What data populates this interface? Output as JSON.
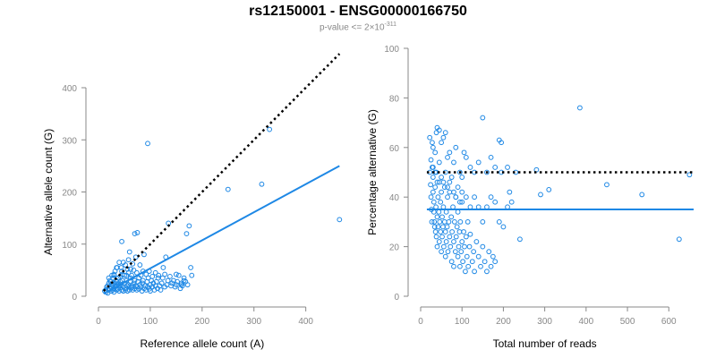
{
  "title": "rs12150001 - ENSG00000166750",
  "subtitle": {
    "prefix": "p-value <= 2×10",
    "exponent": "-311"
  },
  "colors": {
    "points": "#1E88E5",
    "fit_line": "#1E88E5",
    "reference_line": "#000000",
    "axis": "#888888"
  },
  "chart_data": [
    {
      "type": "scatter",
      "xlabel": "Reference allele count (A)",
      "ylabel": "Alternative allele count (G)",
      "xlim": [
        0,
        480
      ],
      "ylim": [
        0,
        400
      ],
      "xticks": [
        0,
        100,
        200,
        300,
        400
      ],
      "yticks": [
        0,
        100,
        200,
        300,
        400
      ],
      "grid": false,
      "reference_line": {
        "style": "dotted",
        "color": "#000000",
        "from": [
          10,
          10
        ],
        "to": [
          465,
          465
        ]
      },
      "fit_line": {
        "style": "solid",
        "color": "#1E88E5",
        "from": [
          10,
          5
        ],
        "to": [
          465,
          250
        ]
      },
      "points": [
        [
          12,
          10
        ],
        [
          14,
          12
        ],
        [
          15,
          8
        ],
        [
          16,
          18
        ],
        [
          18,
          20
        ],
        [
          18,
          6
        ],
        [
          20,
          25
        ],
        [
          20,
          12
        ],
        [
          22,
          14
        ],
        [
          22,
          30
        ],
        [
          24,
          28
        ],
        [
          25,
          10
        ],
        [
          25,
          18
        ],
        [
          26,
          22
        ],
        [
          28,
          35
        ],
        [
          28,
          12
        ],
        [
          30,
          15
        ],
        [
          30,
          40
        ],
        [
          30,
          8
        ],
        [
          32,
          25
        ],
        [
          32,
          18
        ],
        [
          34,
          30
        ],
        [
          35,
          12
        ],
        [
          35,
          20
        ],
        [
          36,
          28
        ],
        [
          38,
          14
        ],
        [
          38,
          35
        ],
        [
          40,
          20
        ],
        [
          40,
          10
        ],
        [
          42,
          28
        ],
        [
          42,
          16
        ],
        [
          44,
          22
        ],
        [
          45,
          12
        ],
        [
          46,
          30
        ],
        [
          48,
          18
        ],
        [
          48,
          10
        ],
        [
          50,
          25
        ],
        [
          50,
          40
        ],
        [
          52,
          15
        ],
        [
          52,
          12
        ],
        [
          54,
          30
        ],
        [
          55,
          20
        ],
        [
          56,
          10
        ],
        [
          58,
          22
        ],
        [
          58,
          45
        ],
        [
          60,
          18
        ],
        [
          60,
          12
        ],
        [
          62,
          28
        ],
        [
          62,
          35
        ],
        [
          64,
          16
        ],
        [
          65,
          20
        ],
        [
          66,
          12
        ],
        [
          68,
          25
        ],
        [
          70,
          30
        ],
        [
          70,
          15
        ],
        [
          72,
          20
        ],
        [
          72,
          75
        ],
        [
          74,
          12
        ],
        [
          75,
          18
        ],
        [
          76,
          28
        ],
        [
          78,
          35
        ],
        [
          78,
          14
        ],
        [
          80,
          22
        ],
        [
          80,
          60
        ],
        [
          82,
          18
        ],
        [
          84,
          10
        ],
        [
          85,
          25
        ],
        [
          86,
          30
        ],
        [
          88,
          15
        ],
        [
          88,
          80
        ],
        [
          90,
          20
        ],
        [
          92,
          12
        ],
        [
          94,
          28
        ],
        [
          95,
          18
        ],
        [
          96,
          35
        ],
        [
          98,
          14
        ],
        [
          100,
          22
        ],
        [
          100,
          10
        ],
        [
          102,
          30
        ],
        [
          104,
          18
        ],
        [
          106,
          25
        ],
        [
          108,
          12
        ],
        [
          110,
          20
        ],
        [
          112,
          28
        ],
        [
          114,
          15
        ],
        [
          115,
          35
        ],
        [
          118,
          20
        ],
        [
          120,
          12
        ],
        [
          122,
          25
        ],
        [
          125,
          55
        ],
        [
          128,
          18
        ],
        [
          130,
          75
        ],
        [
          132,
          22
        ],
        [
          135,
          140
        ],
        [
          140,
          20
        ],
        [
          145,
          30
        ],
        [
          150,
          22
        ],
        [
          155,
          40
        ],
        [
          160,
          25
        ],
        [
          165,
          35
        ],
        [
          170,
          120
        ],
        [
          175,
          135
        ],
        [
          178,
          55
        ],
        [
          45,
          105
        ],
        [
          60,
          85
        ],
        [
          70,
          120
        ],
        [
          75,
          122
        ],
        [
          95,
          293
        ],
        [
          150,
          42
        ],
        [
          160,
          22
        ],
        [
          165,
          30
        ],
        [
          250,
          205
        ],
        [
          315,
          215
        ],
        [
          330,
          320
        ],
        [
          465,
          147
        ],
        [
          30,
          42
        ],
        [
          35,
          55
        ],
        [
          40,
          65
        ],
        [
          45,
          48
        ],
        [
          52,
          60
        ],
        [
          58,
          70
        ],
        [
          62,
          52
        ],
        [
          66,
          62
        ],
        [
          20,
          35
        ],
        [
          24,
          18
        ],
        [
          26,
          40
        ],
        [
          28,
          22
        ],
        [
          32,
          48
        ],
        [
          36,
          55
        ],
        [
          38,
          24
        ],
        [
          42,
          38
        ],
        [
          44,
          55
        ],
        [
          46,
          42
        ],
        [
          48,
          65
        ],
        [
          54,
          40
        ],
        [
          56,
          52
        ],
        [
          64,
          40
        ],
        [
          68,
          50
        ],
        [
          74,
          45
        ],
        [
          82,
          40
        ],
        [
          86,
          48
        ],
        [
          92,
          42
        ],
        [
          98,
          48
        ],
        [
          104,
          38
        ],
        [
          110,
          45
        ],
        [
          116,
          40
        ],
        [
          124,
          35
        ],
        [
          128,
          42
        ],
        [
          134,
          30
        ],
        [
          138,
          38
        ],
        [
          142,
          25
        ],
        [
          148,
          18
        ],
        [
          152,
          28
        ],
        [
          158,
          15
        ],
        [
          162,
          20
        ],
        [
          168,
          28
        ],
        [
          172,
          22
        ],
        [
          180,
          40
        ]
      ]
    },
    {
      "type": "scatter",
      "xlabel": "Total number of reads",
      "ylabel": "Percentage alternative (G)",
      "xlim": [
        0,
        660
      ],
      "ylim": [
        0,
        100
      ],
      "xticks": [
        0,
        100,
        200,
        300,
        400,
        500,
        600
      ],
      "yticks": [
        0,
        20,
        40,
        60,
        80,
        100
      ],
      "grid": false,
      "reference_line": {
        "style": "dotted",
        "color": "#000000",
        "y": 50
      },
      "fit_line": {
        "style": "solid",
        "color": "#1E88E5",
        "y": 35
      },
      "points": [
        [
          22,
          50
        ],
        [
          24,
          45
        ],
        [
          25,
          40
        ],
        [
          26,
          35
        ],
        [
          27,
          30
        ],
        [
          28,
          52
        ],
        [
          30,
          48
        ],
        [
          30,
          42
        ],
        [
          32,
          38
        ],
        [
          32,
          34
        ],
        [
          33,
          30
        ],
        [
          34,
          28
        ],
        [
          35,
          44
        ],
        [
          36,
          26
        ],
        [
          37,
          36
        ],
        [
          38,
          24
        ],
        [
          38,
          50
        ],
        [
          40,
          32
        ],
        [
          40,
          20
        ],
        [
          42,
          40
        ],
        [
          42,
          28
        ],
        [
          44,
          34
        ],
        [
          45,
          22
        ],
        [
          45,
          46
        ],
        [
          46,
          30
        ],
        [
          48,
          26
        ],
        [
          48,
          38
        ],
        [
          50,
          18
        ],
        [
          50,
          42
        ],
        [
          52,
          32
        ],
        [
          52,
          24
        ],
        [
          54,
          28
        ],
        [
          55,
          36
        ],
        [
          56,
          20
        ],
        [
          58,
          30
        ],
        [
          58,
          44
        ],
        [
          60,
          26
        ],
        [
          60,
          16
        ],
        [
          62,
          34
        ],
        [
          62,
          22
        ],
        [
          64,
          28
        ],
        [
          65,
          40
        ],
        [
          66,
          18
        ],
        [
          68,
          30
        ],
        [
          70,
          24
        ],
        [
          70,
          46
        ],
        [
          72,
          20
        ],
        [
          74,
          32
        ],
        [
          75,
          14
        ],
        [
          76,
          26
        ],
        [
          78,
          36
        ],
        [
          80,
          22
        ],
        [
          80,
          12
        ],
        [
          82,
          30
        ],
        [
          84,
          18
        ],
        [
          85,
          40
        ],
        [
          86,
          24
        ],
        [
          88,
          28
        ],
        [
          90,
          16
        ],
        [
          90,
          34
        ],
        [
          92,
          20
        ],
        [
          94,
          26
        ],
        [
          95,
          12
        ],
        [
          96,
          30
        ],
        [
          98,
          18
        ],
        [
          100,
          22
        ],
        [
          100,
          38
        ],
        [
          102,
          14
        ],
        [
          104,
          26
        ],
        [
          106,
          20
        ],
        [
          108,
          10
        ],
        [
          110,
          24
        ],
        [
          112,
          16
        ],
        [
          114,
          30
        ],
        [
          115,
          12
        ],
        [
          118,
          20
        ],
        [
          120,
          25
        ],
        [
          125,
          14
        ],
        [
          128,
          18
        ],
        [
          130,
          10
        ],
        [
          135,
          22
        ],
        [
          140,
          16
        ],
        [
          145,
          12
        ],
        [
          150,
          20
        ],
        [
          155,
          14
        ],
        [
          160,
          10
        ],
        [
          165,
          18
        ],
        [
          170,
          12
        ],
        [
          175,
          16
        ],
        [
          180,
          14
        ],
        [
          22,
          64
        ],
        [
          28,
          62
        ],
        [
          30,
          60
        ],
        [
          35,
          58
        ],
        [
          38,
          66
        ],
        [
          40,
          68
        ],
        [
          45,
          67
        ],
        [
          50,
          62
        ],
        [
          55,
          64
        ],
        [
          60,
          66
        ],
        [
          65,
          56
        ],
        [
          70,
          58
        ],
        [
          80,
          54
        ],
        [
          85,
          60
        ],
        [
          95,
          50
        ],
        [
          100,
          48
        ],
        [
          105,
          58
        ],
        [
          110,
          56
        ],
        [
          120,
          52
        ],
        [
          130,
          50
        ],
        [
          140,
          54
        ],
        [
          150,
          72
        ],
        [
          160,
          50
        ],
        [
          170,
          56
        ],
        [
          180,
          52
        ],
        [
          190,
          63
        ],
        [
          195,
          62
        ],
        [
          195,
          50
        ],
        [
          210,
          52
        ],
        [
          215,
          42
        ],
        [
          220,
          38
        ],
        [
          230,
          50
        ],
        [
          240,
          23
        ],
        [
          280,
          51
        ],
        [
          290,
          41
        ],
        [
          310,
          43
        ],
        [
          385,
          76
        ],
        [
          450,
          45
        ],
        [
          535,
          41
        ],
        [
          625,
          23
        ],
        [
          650,
          49
        ],
        [
          25,
          55
        ],
        [
          30,
          52
        ],
        [
          35,
          50
        ],
        [
          40,
          46
        ],
        [
          45,
          54
        ],
        [
          50,
          48
        ],
        [
          55,
          46
        ],
        [
          60,
          50
        ],
        [
          65,
          44
        ],
        [
          70,
          42
        ],
        [
          75,
          48
        ],
        [
          80,
          42
        ],
        [
          85,
          40
        ],
        [
          90,
          44
        ],
        [
          95,
          38
        ],
        [
          100,
          42
        ],
        [
          110,
          40
        ],
        [
          120,
          36
        ],
        [
          130,
          40
        ],
        [
          140,
          36
        ],
        [
          150,
          30
        ],
        [
          160,
          36
        ],
        [
          170,
          40
        ],
        [
          180,
          38
        ],
        [
          190,
          30
        ],
        [
          200,
          28
        ],
        [
          210,
          36
        ]
      ]
    }
  ]
}
